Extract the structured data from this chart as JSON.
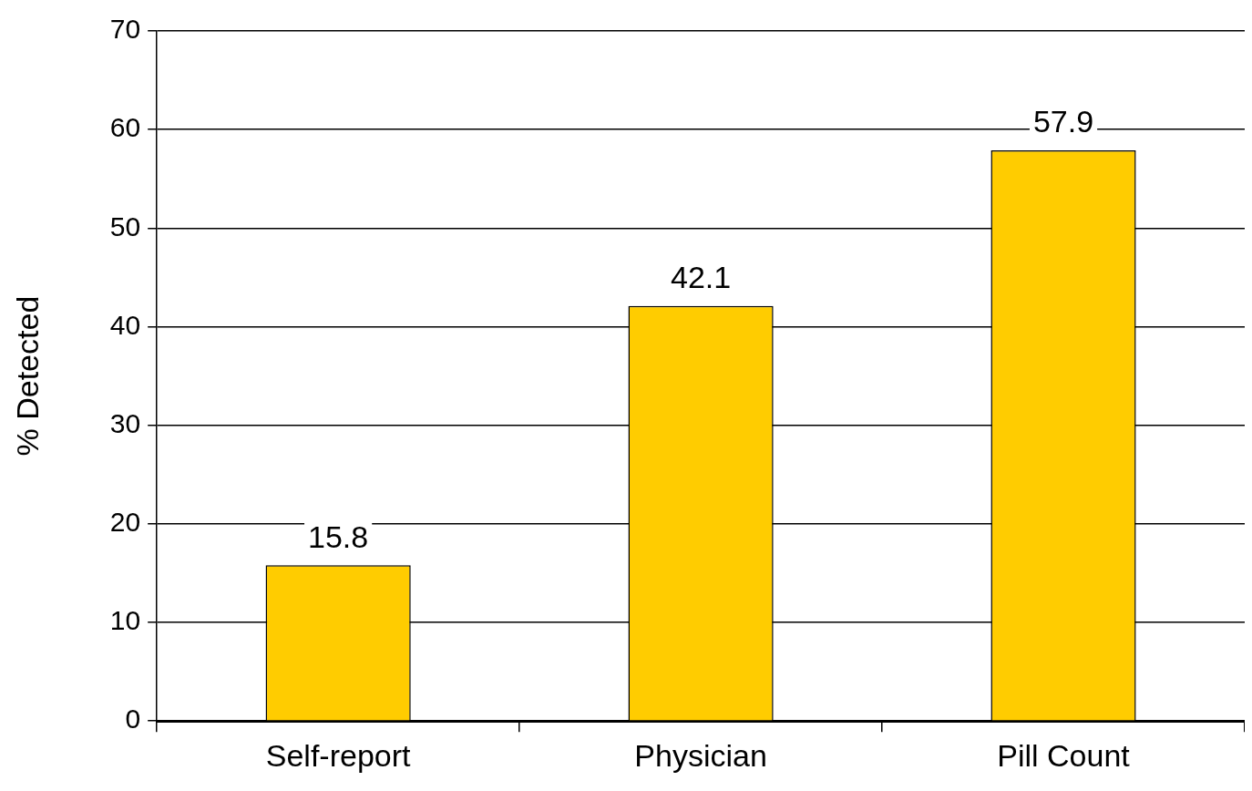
{
  "chart_data": {
    "type": "bar",
    "ylabel": "% Detected",
    "categories": [
      "Self-report",
      "Physician",
      "Pill Count"
    ],
    "values": [
      15.8,
      42.1,
      57.9
    ],
    "color": "#ffcc00",
    "ylim": [
      0,
      70
    ],
    "yticks": [
      0,
      10,
      20,
      30,
      40,
      50,
      60,
      70
    ],
    "grid": "y",
    "legend": false,
    "data_labels": true
  }
}
